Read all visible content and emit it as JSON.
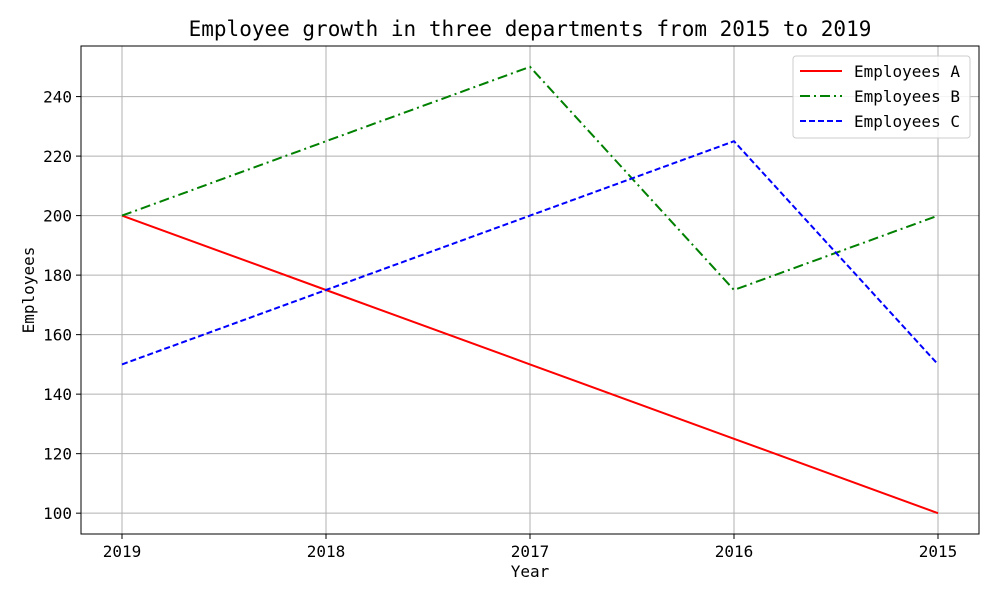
{
  "chart_data": {
    "type": "line",
    "title": "Employee growth in three departments from 2015 to 2019",
    "xlabel": "Year",
    "ylabel": "Employees",
    "categories": [
      "2019",
      "2018",
      "2017",
      "2016",
      "2015"
    ],
    "yticks": [
      100,
      120,
      140,
      160,
      180,
      200,
      220,
      240
    ],
    "ylim": [
      93,
      257
    ],
    "grid": true,
    "legend_position": "top-right",
    "series": [
      {
        "name": "Employees A",
        "values": [
          200,
          175,
          150,
          125,
          100
        ],
        "color": "#ff0000",
        "style": "solid"
      },
      {
        "name": "Employees B",
        "values": [
          200,
          225,
          250,
          175,
          200
        ],
        "color": "#008000",
        "style": "dashdot"
      },
      {
        "name": "Employees C",
        "values": [
          150,
          175,
          200,
          225,
          150
        ],
        "color": "#0000ff",
        "style": "dashed"
      }
    ]
  }
}
